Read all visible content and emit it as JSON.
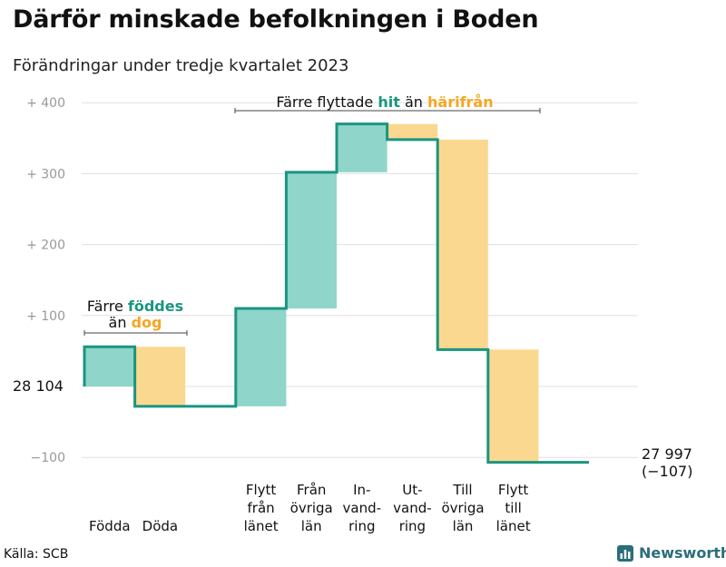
{
  "title": "Därför minskade befolkningen i Boden",
  "subtitle": "Förändringar under tredje kvartalet 2023",
  "source": "Källa: SCB",
  "logo_text": "Newsworthy",
  "colors": {
    "teal_fill": "#8fd5c9",
    "teal_line": "#1a9580",
    "orange_fill": "#fbd88f",
    "orange_text": "#f5a623",
    "teal_text": "#1a9580",
    "grid": "#e0e0e0",
    "tick": "#999999",
    "logo": "#2a6e7a"
  },
  "chart_data": {
    "type": "waterfall",
    "baseline": 28104,
    "start_label": "28  104",
    "end_value": 27997,
    "end_labels": [
      "27 997",
      "(−107)"
    ],
    "ylim": [
      -130,
      420
    ],
    "yticks": [
      {
        "value": 400,
        "label": "+  400"
      },
      {
        "value": 300,
        "label": "+  300"
      },
      {
        "value": 200,
        "label": "+  200"
      },
      {
        "value": 100,
        "label": "+  100"
      },
      {
        "value": -100,
        "label": "−100"
      }
    ],
    "steps": [
      {
        "category": [
          "Födda"
        ],
        "start": 0,
        "end": 56,
        "kind": "increase"
      },
      {
        "category": [
          "Döda"
        ],
        "start": 56,
        "end": -28,
        "kind": "decrease"
      },
      {
        "category": [],
        "start": -28,
        "end": -28,
        "kind": "none"
      },
      {
        "category": [
          "Flytt",
          "från",
          "länet"
        ],
        "start": -28,
        "end": 110,
        "kind": "increase"
      },
      {
        "category": [
          "Från",
          "övriga",
          "län"
        ],
        "start": 110,
        "end": 302,
        "kind": "increase"
      },
      {
        "category": [
          "In-",
          "vand-",
          "ring"
        ],
        "start": 302,
        "end": 370,
        "kind": "increase"
      },
      {
        "category": [
          "Ut-",
          "vand-",
          "ring"
        ],
        "start": 370,
        "end": 348,
        "kind": "decrease"
      },
      {
        "category": [
          "Till",
          "övriga",
          "län"
        ],
        "start": 348,
        "end": 52,
        "kind": "decrease"
      },
      {
        "category": [
          "Flytt",
          "till",
          "länet"
        ],
        "start": 52,
        "end": -107,
        "kind": "decrease"
      },
      {
        "category": [],
        "start": -107,
        "end": -107,
        "kind": "none"
      }
    ],
    "annotations": [
      {
        "lines": [
          [
            {
              "t": "Färre "
            },
            {
              "t": "föddes",
              "c": "teal"
            }
          ],
          [
            {
              "t": "än "
            },
            {
              "t": "dog",
              "c": "orange"
            }
          ]
        ]
      },
      {
        "lines": [
          [
            {
              "t": "Färre flyttade "
            },
            {
              "t": "hit",
              "c": "teal"
            },
            {
              "t": "  än "
            },
            {
              "t": "härifrån",
              "c": "orange"
            }
          ]
        ]
      }
    ]
  }
}
